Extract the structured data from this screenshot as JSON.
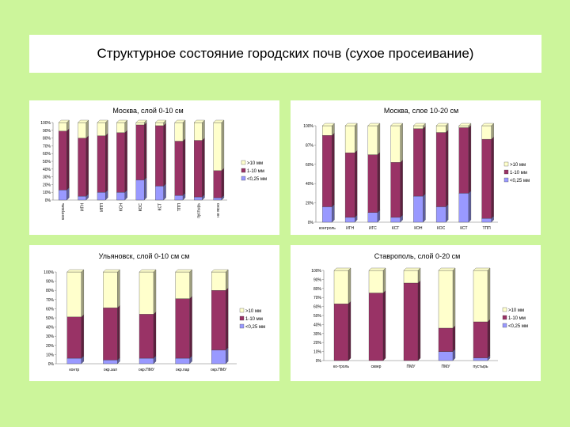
{
  "page": {
    "title": "Структурное состояние городских почв (сухое просеивание)",
    "colors": {
      "background": "#ccf59b",
      "small": "#9999ff",
      "medium": "#993366",
      "large": "#ffffcc"
    }
  },
  "chart_data": [
    {
      "type": "bar",
      "stacked": true,
      "title": "Москва, слой 0-10 см",
      "yticks": [
        "100%",
        "90%",
        "80%",
        "70%",
        "60%",
        "50%",
        "40%",
        "30%",
        "20%",
        "10%",
        "0%"
      ],
      "ylim": [
        0,
        100
      ],
      "categories": [
        "контроль",
        "ИГН",
        "ИПП",
        "КСН",
        "КОС",
        "КСТ",
        "ТПП",
        "пустырь",
        "не ясно"
      ],
      "category_rotation": "vertical",
      "legend_position": "right",
      "series": [
        {
          "name": "<0,25 мм",
          "color": "#9999ff",
          "values": [
            13,
            5,
            10,
            10,
            26,
            18,
            6,
            4,
            3
          ]
        },
        {
          "name": "1-10 мм",
          "color": "#993366",
          "values": [
            76,
            75,
            73,
            77,
            71,
            78,
            70,
            73,
            35
          ]
        },
        {
          "name": ">10 мм",
          "color": "#ffffcc",
          "values": [
            11,
            20,
            17,
            13,
            3,
            4,
            24,
            23,
            62
          ]
        }
      ]
    },
    {
      "type": "bar",
      "stacked": true,
      "title": "Москва, слое 10-20 см",
      "yticks": [
        "100%",
        "87%",
        "60%",
        "40%",
        "20%",
        "0%"
      ],
      "ylim": [
        0,
        100
      ],
      "categories": [
        "контроль",
        "ИГН",
        "ИГС",
        "КСТ",
        "КОН",
        "КОС",
        "КСТ",
        "ТПП"
      ],
      "category_rotation": "horizontal",
      "legend_position": "right",
      "series": [
        {
          "name": "<0,25 мм",
          "color": "#9999ff",
          "values": [
            16,
            5,
            10,
            5,
            27,
            16,
            30,
            4
          ]
        },
        {
          "name": "1-10 мм",
          "color": "#993366",
          "values": [
            74,
            67,
            60,
            57,
            70,
            77,
            68,
            82
          ]
        },
        {
          "name": ">10 мм",
          "color": "#ffffcc",
          "values": [
            10,
            28,
            30,
            38,
            3,
            7,
            2,
            14
          ]
        }
      ]
    },
    {
      "type": "bar",
      "stacked": true,
      "title": "Ульяновск, слой 0-10 см см",
      "yticks": [
        "100%",
        "90%",
        "80%",
        "70%",
        "60%",
        "50%",
        "40%",
        "30%",
        "20%",
        "10%",
        "0%"
      ],
      "ylim": [
        0,
        100
      ],
      "categories": [
        "контр",
        "окр.зал",
        "окр.ПМУ",
        "окр.пар",
        "окр.ПМУ"
      ],
      "category_rotation": "horizontal",
      "legend_position": "right",
      "series": [
        {
          "name": "<0,25 мм",
          "color": "#9999ff",
          "values": [
            6,
            4,
            6,
            6,
            15
          ]
        },
        {
          "name": "1-10 мм",
          "color": "#993366",
          "values": [
            45,
            57,
            48,
            65,
            65
          ]
        },
        {
          "name": ">10 мм",
          "color": "#ffffcc",
          "values": [
            49,
            39,
            46,
            29,
            20
          ]
        }
      ]
    },
    {
      "type": "bar",
      "stacked": true,
      "title": "Ставрополь, слой 0-20 см",
      "yticks": [
        "100%",
        "90%",
        "80%",
        "70%",
        "60%",
        "50%",
        "40%",
        "30%",
        "20%",
        "10%",
        "0%"
      ],
      "ylim": [
        0,
        100
      ],
      "categories": [
        "ко-троль",
        "сквер",
        "ПМУ",
        "ПМУ",
        "пустырь"
      ],
      "category_rotation": "horizontal",
      "legend_position": "right",
      "series": [
        {
          "name": "<0,25 мм",
          "color": "#9999ff",
          "values": [
            0,
            0,
            0,
            10,
            3
          ]
        },
        {
          "name": "1-10 мм",
          "color": "#993366",
          "values": [
            63,
            75,
            86,
            26,
            40
          ]
        },
        {
          "name": ">10 мм",
          "color": "#ffffcc",
          "values": [
            37,
            25,
            14,
            64,
            57
          ]
        }
      ]
    }
  ]
}
